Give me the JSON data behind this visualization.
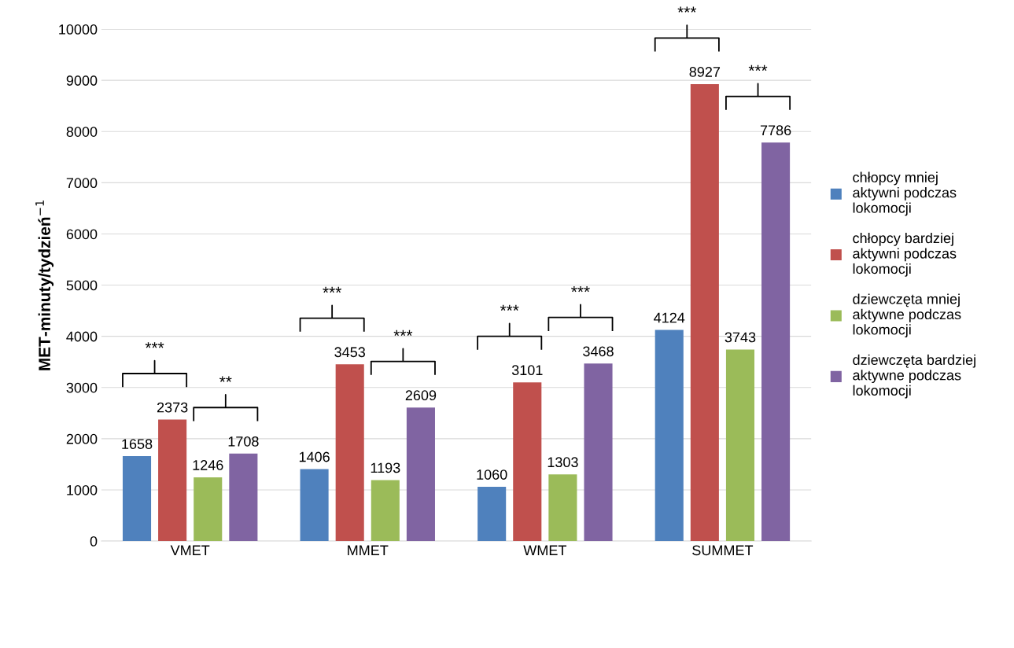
{
  "chart_data": {
    "type": "bar",
    "ylabel": "MET-minuty/tydzień$^{−1}$",
    "categories": [
      "VMET",
      "MMET",
      "WMET",
      "SUMMET"
    ],
    "series": [
      {
        "name": "chłopcy mniej\naktywni podczas\nlokomocji",
        "color": "#4f81bd",
        "values": [
          1658,
          1406,
          1060,
          4124
        ]
      },
      {
        "name": "chłopcy bardziej\naktywni podczas\nlokomocji",
        "color": "#c0504d",
        "values": [
          2373,
          3453,
          3101,
          8927
        ]
      },
      {
        "name": "dziewczęta mniej\naktywne podczas\nlokomocji",
        "color": "#9bbb59",
        "values": [
          1246,
          1193,
          1303,
          3743
        ]
      },
      {
        "name": "dziewczęta bardziej\naktywne podczas\nlokomocji",
        "color": "#8064a2",
        "values": [
          1708,
          2609,
          3468,
          7786
        ]
      }
    ],
    "ylim": [
      0,
      10000
    ],
    "yticks": [
      0,
      1000,
      2000,
      3000,
      4000,
      5000,
      6000,
      7000,
      8000,
      9000,
      10000
    ],
    "grid": "y",
    "legend": "right",
    "data_labels": true,
    "annotations": [
      "***",
      "**",
      "***",
      "***",
      "***",
      "***",
      "***",
      "***"
    ]
  }
}
